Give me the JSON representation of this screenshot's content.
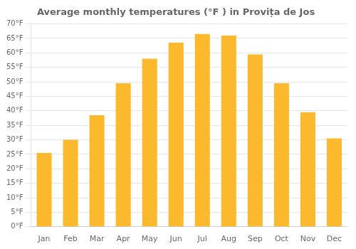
{
  "chart_data": {
    "type": "bar",
    "title": "Average monthly temperatures (°F ) in Provița de Jos",
    "categories": [
      "Jan",
      "Feb",
      "Mar",
      "Apr",
      "May",
      "Jun",
      "Jul",
      "Aug",
      "Sep",
      "Oct",
      "Nov",
      "Dec"
    ],
    "values": [
      25.5,
      30.0,
      38.5,
      49.5,
      58.0,
      63.5,
      66.5,
      66.0,
      59.5,
      49.5,
      39.5,
      30.5
    ],
    "color": "#FDB92E",
    "ylim": [
      0,
      70
    ],
    "yticks": [
      {
        "value": 0,
        "label": "0°F"
      },
      {
        "value": 5,
        "label": "5°F"
      },
      {
        "value": 10,
        "label": "10°F"
      },
      {
        "value": 15,
        "label": "15°F"
      },
      {
        "value": 20,
        "label": "20°F"
      },
      {
        "value": 25,
        "label": "25°F"
      },
      {
        "value": 30,
        "label": "30°F"
      },
      {
        "value": 35,
        "label": "35°F"
      },
      {
        "value": 40,
        "label": "40°F"
      },
      {
        "value": 45,
        "label": "45°F"
      },
      {
        "value": 50,
        "label": "50°F"
      },
      {
        "value": 55,
        "label": "55°F"
      },
      {
        "value": 60,
        "label": "60°F"
      },
      {
        "value": 65,
        "label": "65°F"
      },
      {
        "value": 70,
        "label": "70°F"
      }
    ],
    "grid": true
  }
}
